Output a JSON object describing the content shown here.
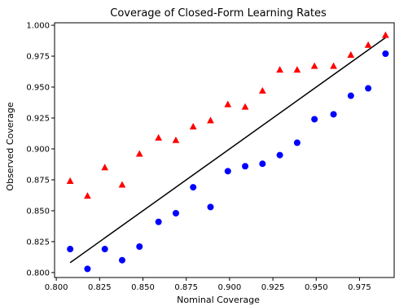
{
  "chart_data": {
    "type": "scatter",
    "title": "Coverage of Closed-Form Learning Rates",
    "xlabel": "Nominal Coverage",
    "ylabel": "Observed Coverage",
    "xlim": [
      0.799,
      0.995
    ],
    "ylim": [
      0.796,
      1.002
    ],
    "x_ticks": [
      0.8,
      0.825,
      0.85,
      0.875,
      0.9,
      0.925,
      0.95,
      0.975
    ],
    "x_tick_labels": [
      "0.800",
      "0.825",
      "0.850",
      "0.875",
      "0.900",
      "0.925",
      "0.950",
      "0.975"
    ],
    "y_ticks": [
      0.8,
      0.825,
      0.85,
      0.875,
      0.9,
      0.925,
      0.95,
      0.975,
      1.0
    ],
    "y_tick_labels": [
      "0.800",
      "0.825",
      "0.850",
      "0.875",
      "0.900",
      "0.925",
      "0.950",
      "0.975",
      "1.000"
    ],
    "grid": false,
    "legend": false,
    "series": [
      {
        "marker": "triangle",
        "color": "#ff0000",
        "x": [
          0.808,
          0.818,
          0.828,
          0.838,
          0.848,
          0.859,
          0.869,
          0.879,
          0.889,
          0.899,
          0.909,
          0.919,
          0.929,
          0.939,
          0.949,
          0.96,
          0.97,
          0.98,
          0.99
        ],
        "y": [
          0.874,
          0.862,
          0.885,
          0.871,
          0.896,
          0.909,
          0.907,
          0.918,
          0.923,
          0.936,
          0.934,
          0.947,
          0.964,
          0.964,
          0.967,
          0.967,
          0.976,
          0.984,
          0.992
        ]
      },
      {
        "marker": "circle",
        "color": "#0000ff",
        "x": [
          0.808,
          0.818,
          0.828,
          0.838,
          0.848,
          0.859,
          0.869,
          0.879,
          0.889,
          0.899,
          0.909,
          0.919,
          0.929,
          0.939,
          0.949,
          0.96,
          0.97,
          0.98,
          0.99
        ],
        "y": [
          0.819,
          0.803,
          0.819,
          0.81,
          0.821,
          0.841,
          0.848,
          0.869,
          0.853,
          0.882,
          0.886,
          0.888,
          0.895,
          0.905,
          0.924,
          0.928,
          0.943,
          0.949,
          0.977
        ]
      },
      {
        "marker": "line",
        "color": "#000000",
        "x": [
          0.808,
          0.99
        ],
        "y": [
          0.808,
          0.99
        ]
      }
    ]
  }
}
